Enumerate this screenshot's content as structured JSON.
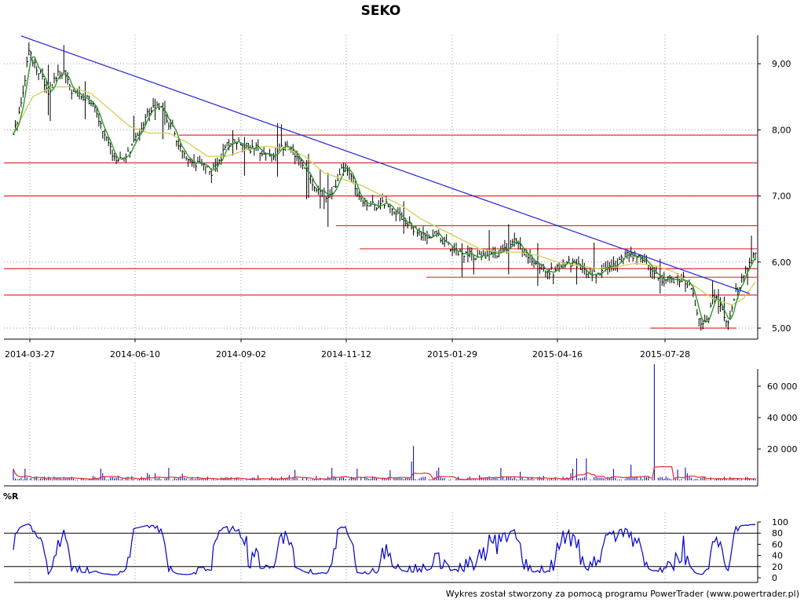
{
  "chart_data": [
    {
      "type": "candlestick",
      "title": "SEKO",
      "x_ticks": [
        "2014-03-27",
        "2014-06-10",
        "2014-09-02",
        "2014-11-12",
        "2015-01-29",
        "2015-04-16",
        "2015-07-28"
      ],
      "y_ticks": [
        "5,00",
        "6,00",
        "7,00",
        "8,00",
        "9,00"
      ],
      "ylim": [
        4.9,
        9.5
      ],
      "grid": true,
      "overlays": [
        {
          "kind": "moving-average",
          "color": "#2a9a2a",
          "role": "short"
        },
        {
          "kind": "moving-average",
          "color": "#d8d060",
          "role": "long"
        }
      ],
      "trendline": {
        "color": "#2020d8",
        "from": [
          "2014-03-27",
          9.42
        ],
        "to": [
          "2015-09-24",
          5.52
        ]
      },
      "horizontal_levels": [
        {
          "y": 7.92,
          "from": "2014-07-12",
          "to": "end"
        },
        {
          "y": 7.5,
          "from": "start",
          "to": "end"
        },
        {
          "y": 7.0,
          "from": "start",
          "to": "end"
        },
        {
          "y": 6.55,
          "from": "2014-11-08",
          "to": "end"
        },
        {
          "y": 6.2,
          "from": "2014-12-05",
          "to": "end"
        },
        {
          "y": 5.9,
          "from": "start",
          "to": "end"
        },
        {
          "y": 5.77,
          "from": "2015-01-25",
          "to": "end"
        },
        {
          "y": 5.5,
          "from": "start",
          "to": "end"
        },
        {
          "y": 5.0,
          "from": "2015-07-20",
          "to": "2015-09-25"
        }
      ],
      "level_color": "#e03030",
      "close_series": [
        [
          0,
          7.9
        ],
        [
          4,
          8.4
        ],
        [
          8,
          9.2
        ],
        [
          11,
          9.0
        ],
        [
          15,
          8.8
        ],
        [
          18,
          8.5
        ],
        [
          22,
          8.8
        ],
        [
          26,
          8.9
        ],
        [
          30,
          8.6
        ],
        [
          34,
          8.5
        ],
        [
          38,
          8.5
        ],
        [
          42,
          8.3
        ],
        [
          46,
          8.0
        ],
        [
          50,
          7.7
        ],
        [
          54,
          7.5
        ],
        [
          58,
          7.6
        ],
        [
          62,
          7.8
        ],
        [
          66,
          8.05
        ],
        [
          70,
          8.3
        ],
        [
          74,
          8.4
        ],
        [
          78,
          8.2
        ],
        [
          82,
          8.0
        ],
        [
          86,
          7.7
        ],
        [
          90,
          7.5
        ],
        [
          94,
          7.45
        ],
        [
          98,
          7.5
        ],
        [
          102,
          7.35
        ],
        [
          106,
          7.55
        ],
        [
          110,
          7.75
        ],
        [
          114,
          7.85
        ],
        [
          118,
          7.8
        ],
        [
          122,
          7.7
        ],
        [
          126,
          7.72
        ],
        [
          130,
          7.65
        ],
        [
          134,
          7.6
        ],
        [
          138,
          7.72
        ],
        [
          142,
          7.75
        ],
        [
          146,
          7.6
        ],
        [
          150,
          7.4
        ],
        [
          154,
          7.2
        ],
        [
          158,
          7.05
        ],
        [
          162,
          7.0
        ],
        [
          166,
          7.15
        ],
        [
          170,
          7.45
        ],
        [
          174,
          7.3
        ],
        [
          178,
          7.0
        ],
        [
          182,
          6.9
        ],
        [
          186,
          6.85
        ],
        [
          190,
          6.9
        ],
        [
          194,
          6.85
        ],
        [
          198,
          6.75
        ],
        [
          202,
          6.6
        ],
        [
          206,
          6.5
        ],
        [
          210,
          6.4
        ],
        [
          214,
          6.35
        ],
        [
          218,
          6.45
        ],
        [
          222,
          6.3
        ],
        [
          226,
          6.2
        ],
        [
          230,
          6.15
        ],
        [
          234,
          6.1
        ],
        [
          238,
          6.1
        ],
        [
          242,
          6.1
        ],
        [
          246,
          6.12
        ],
        [
          250,
          6.15
        ],
        [
          254,
          6.2
        ],
        [
          258,
          6.3
        ],
        [
          262,
          6.2
        ],
        [
          266,
          6.05
        ],
        [
          270,
          5.95
        ],
        [
          274,
          5.9
        ],
        [
          278,
          5.85
        ],
        [
          282,
          5.95
        ],
        [
          286,
          6.0
        ],
        [
          290,
          5.95
        ],
        [
          294,
          5.85
        ],
        [
          298,
          5.8
        ],
        [
          302,
          5.85
        ],
        [
          306,
          5.92
        ],
        [
          310,
          5.98
        ],
        [
          314,
          6.08
        ],
        [
          318,
          6.1
        ],
        [
          322,
          6.1
        ],
        [
          326,
          6.0
        ],
        [
          330,
          5.85
        ],
        [
          334,
          5.75
        ],
        [
          338,
          5.72
        ],
        [
          342,
          5.75
        ],
        [
          346,
          5.72
        ],
        [
          350,
          5.5
        ],
        [
          352,
          5.25
        ],
        [
          354,
          5.05
        ],
        [
          356,
          5.05
        ],
        [
          358,
          5.2
        ],
        [
          360,
          5.45
        ],
        [
          362,
          5.42
        ],
        [
          364,
          5.3
        ],
        [
          366,
          5.2
        ],
        [
          368,
          5.1
        ],
        [
          370,
          5.25
        ],
        [
          372,
          5.55
        ],
        [
          374,
          5.65
        ],
        [
          376,
          5.8
        ],
        [
          378,
          5.95
        ],
        [
          380,
          6.05
        ],
        [
          382,
          6.1
        ]
      ],
      "long_ma_series": [
        [
          0,
          7.95
        ],
        [
          10,
          8.5
        ],
        [
          20,
          8.65
        ],
        [
          30,
          8.65
        ],
        [
          40,
          8.55
        ],
        [
          50,
          8.3
        ],
        [
          60,
          8.05
        ],
        [
          70,
          7.95
        ],
        [
          80,
          7.95
        ],
        [
          90,
          7.8
        ],
        [
          100,
          7.6
        ],
        [
          110,
          7.6
        ],
        [
          120,
          7.7
        ],
        [
          130,
          7.75
        ],
        [
          140,
          7.72
        ],
        [
          150,
          7.6
        ],
        [
          160,
          7.35
        ],
        [
          170,
          7.25
        ],
        [
          180,
          7.15
        ],
        [
          190,
          7.0
        ],
        [
          200,
          6.85
        ],
        [
          210,
          6.65
        ],
        [
          220,
          6.5
        ],
        [
          230,
          6.35
        ],
        [
          240,
          6.2
        ],
        [
          250,
          6.15
        ],
        [
          260,
          6.15
        ],
        [
          270,
          6.1
        ],
        [
          280,
          6.0
        ],
        [
          290,
          5.95
        ],
        [
          300,
          5.9
        ],
        [
          310,
          5.92
        ],
        [
          320,
          5.98
        ],
        [
          330,
          5.95
        ],
        [
          340,
          5.85
        ],
        [
          350,
          5.65
        ],
        [
          360,
          5.45
        ],
        [
          370,
          5.35
        ],
        [
          376,
          5.45
        ],
        [
          382,
          5.7
        ]
      ]
    },
    {
      "type": "bar",
      "title": "",
      "y_ticks": [
        "20 000",
        "40 000",
        "60 000"
      ],
      "ylim": [
        0,
        75000
      ],
      "bar_color": "#0000aa",
      "ma_color": "#e03030",
      "spikes": [
        [
          206,
          22000
        ],
        [
          205,
          12000
        ],
        [
          290,
          14000
        ],
        [
          295,
          14000
        ],
        [
          330,
          74000
        ],
        [
          318,
          10000
        ]
      ]
    },
    {
      "type": "line",
      "title": "%R",
      "y_ticks": [
        "0",
        "20",
        "40",
        "60",
        "80",
        "100"
      ],
      "ylim": [
        0,
        100
      ],
      "reference_levels": [
        20,
        80
      ],
      "color": "#0000cc"
    }
  ],
  "footer": "Wykres został stworzony za pomocą programu PowerTrader (www.powertrader.pl)"
}
